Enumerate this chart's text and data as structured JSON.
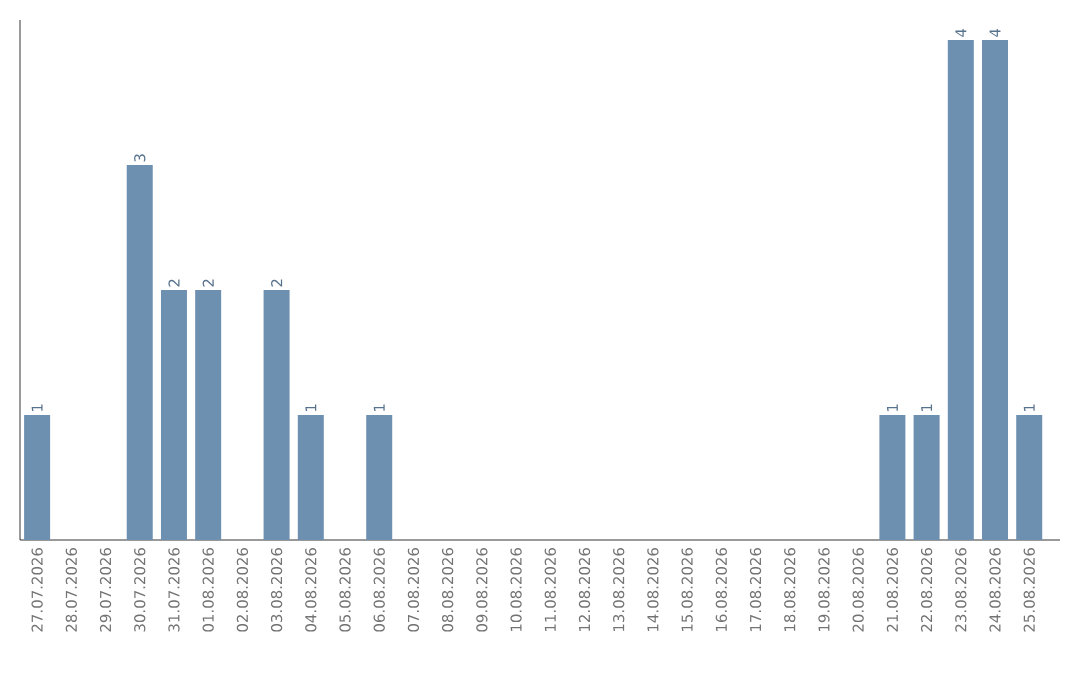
{
  "chart_data": {
    "type": "bar",
    "categories": [
      "27.07.2026",
      "28.07.2026",
      "29.07.2026",
      "30.07.2026",
      "31.07.2026",
      "01.08.2026",
      "02.08.2026",
      "03.08.2026",
      "04.08.2026",
      "05.08.2026",
      "06.08.2026",
      "07.08.2026",
      "08.08.2026",
      "09.08.2026",
      "10.08.2026",
      "11.08.2026",
      "12.08.2026",
      "13.08.2026",
      "14.08.2026",
      "15.08.2026",
      "16.08.2026",
      "17.08.2026",
      "18.08.2026",
      "19.08.2026",
      "20.08.2026",
      "21.08.2026",
      "22.08.2026",
      "23.08.2026",
      "24.08.2026",
      "25.08.2026"
    ],
    "values": [
      1,
      0,
      0,
      3,
      2,
      2,
      0,
      2,
      1,
      0,
      1,
      0,
      0,
      0,
      0,
      0,
      0,
      0,
      0,
      0,
      0,
      0,
      0,
      0,
      0,
      1,
      1,
      4,
      4,
      1
    ],
    "value_labels": [
      "1",
      null,
      null,
      "3",
      "2",
      "2",
      null,
      "2",
      "1",
      null,
      "1",
      null,
      null,
      null,
      null,
      null,
      null,
      null,
      null,
      null,
      null,
      null,
      null,
      null,
      null,
      "1",
      "1",
      "4",
      "4",
      "1"
    ],
    "color": "#6d8fb0",
    "ylim": [
      0,
      4.16
    ],
    "tick_labels": "x"
  }
}
